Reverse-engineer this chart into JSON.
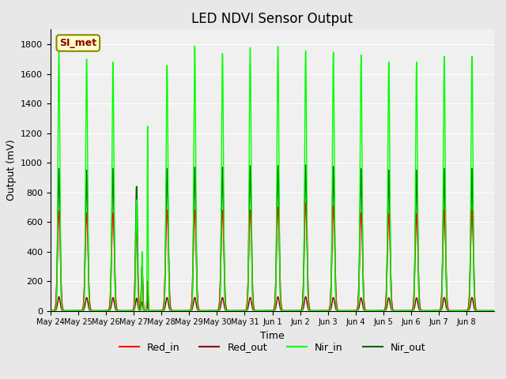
{
  "title": "LED NDVI Sensor Output",
  "xlabel": "Time",
  "ylabel": "Output (mV)",
  "ylim": [
    0,
    1900
  ],
  "yticks": [
    0,
    200,
    400,
    600,
    800,
    1000,
    1200,
    1400,
    1600,
    1800
  ],
  "x_labels": [
    "May 24",
    "May 25",
    "May 26",
    "May 27",
    "May 28",
    "May 29",
    "May 30",
    "May 31",
    "Jun 1",
    "Jun 2",
    "Jun 3",
    "Jun 4",
    "Jun 5",
    "Jun 6",
    "Jun 7",
    "Jun 8"
  ],
  "background_color": "#e8e8e8",
  "plot_bg_color": "#f0f0f0",
  "annotation_text": "SI_met",
  "annotation_bg": "#ffffcc",
  "annotation_border": "#888800",
  "colors": {
    "Red_in": "#ff0000",
    "Red_out": "#8b0000",
    "Nir_in": "#00ff00",
    "Nir_out": "#006400"
  },
  "legend_labels": [
    "Red_in",
    "Red_out",
    "Nir_in",
    "Nir_out"
  ],
  "spike_params": [
    [
      0.3,
      670,
      95,
      1750,
      960,
      0.15
    ],
    [
      1.3,
      660,
      90,
      1700,
      950,
      0.15
    ],
    [
      2.25,
      660,
      90,
      1680,
      960,
      0.15
    ],
    [
      3.1,
      540,
      85,
      750,
      840,
      0.12
    ],
    [
      3.3,
      300,
      60,
      400,
      300,
      0.08
    ],
    [
      3.5,
      200,
      50,
      1250,
      140,
      0.06
    ],
    [
      4.2,
      680,
      90,
      1660,
      960,
      0.15
    ],
    [
      5.2,
      680,
      90,
      1790,
      970,
      0.15
    ],
    [
      6.2,
      680,
      90,
      1740,
      970,
      0.15
    ],
    [
      7.2,
      680,
      90,
      1780,
      980,
      0.15
    ],
    [
      8.2,
      700,
      95,
      1790,
      980,
      0.15
    ],
    [
      9.2,
      730,
      95,
      1760,
      985,
      0.15
    ],
    [
      10.2,
      710,
      90,
      1750,
      975,
      0.15
    ],
    [
      11.2,
      660,
      88,
      1730,
      960,
      0.15
    ],
    [
      12.2,
      655,
      88,
      1680,
      950,
      0.15
    ],
    [
      13.2,
      655,
      88,
      1680,
      950,
      0.15
    ],
    [
      14.2,
      680,
      90,
      1720,
      960,
      0.15
    ],
    [
      15.2,
      680,
      90,
      1720,
      960,
      0.15
    ]
  ]
}
